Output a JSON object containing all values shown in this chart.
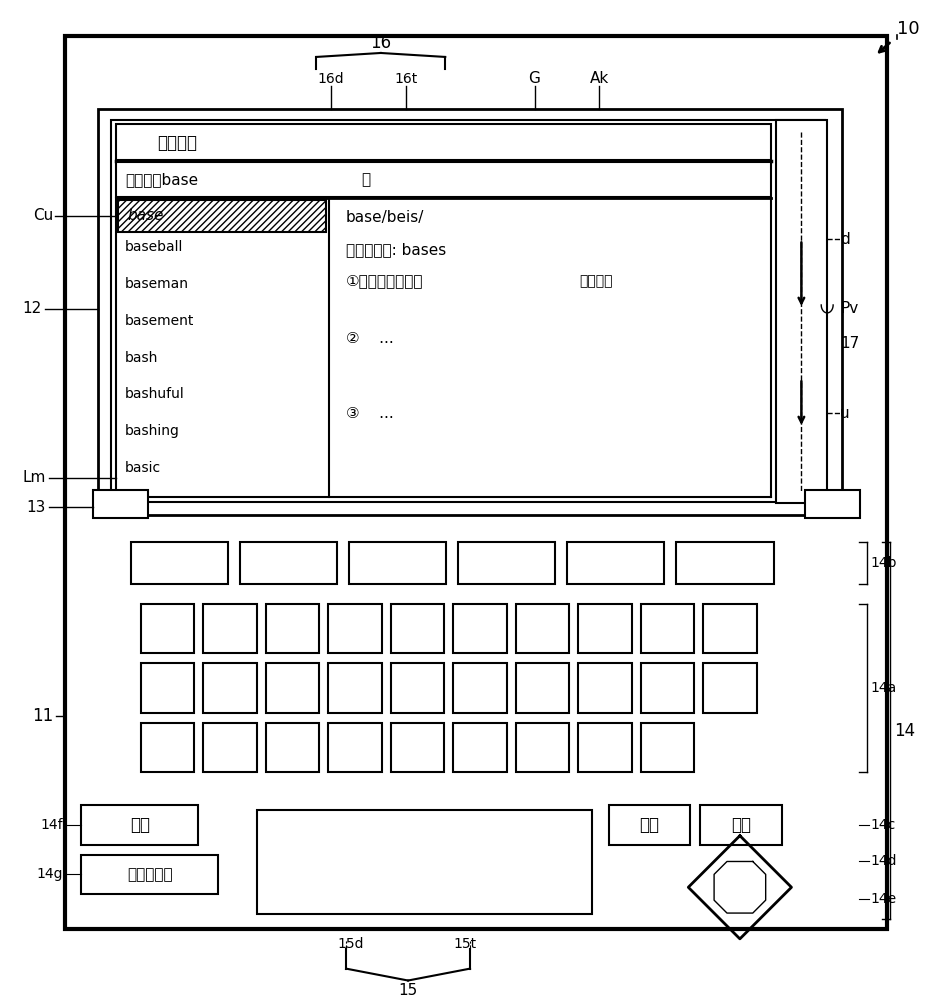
{
  "bg_color": "#ffffff",
  "line_color": "#000000",
  "screen_title": "英日词典",
  "search_text": "检索词【base",
  "search_close": "】",
  "highlighted_word": "base",
  "word_list": [
    "baseball",
    "baseman",
    "basement",
    "bash",
    "bashuful",
    "bashing",
    "basic"
  ],
  "def_line1": "base/beis/",
  "def_line2": "《名》复数: bases",
  "def_line3": "①地基、基底、底",
  "def_example": "（用例）",
  "def_line4": "②    ...",
  "def_line5": "③    ...",
  "btn_jump": "跳转",
  "btn_ok": "决定",
  "btn_register": "登录",
  "btn_series": "一连串执行",
  "label_10": "10",
  "label_16": "16",
  "label_16d": "16d",
  "label_16t": "16t",
  "label_G": "G",
  "label_Ak": "Ak",
  "label_12": "12",
  "label_13": "13",
  "label_Cu": "Cu",
  "label_Lm": "Lm",
  "label_d": "d",
  "label_Pv": "Pv",
  "label_17": "17",
  "label_u": "u",
  "label_11": "11",
  "label_14": "14",
  "label_14a": "14a",
  "label_14b": "14b",
  "label_14c": "14c",
  "label_14d": "14d",
  "label_14e": "14e",
  "label_14f": "14f",
  "label_14g": "14g",
  "label_15": "15",
  "label_15d": "15d",
  "label_15t": "15t"
}
